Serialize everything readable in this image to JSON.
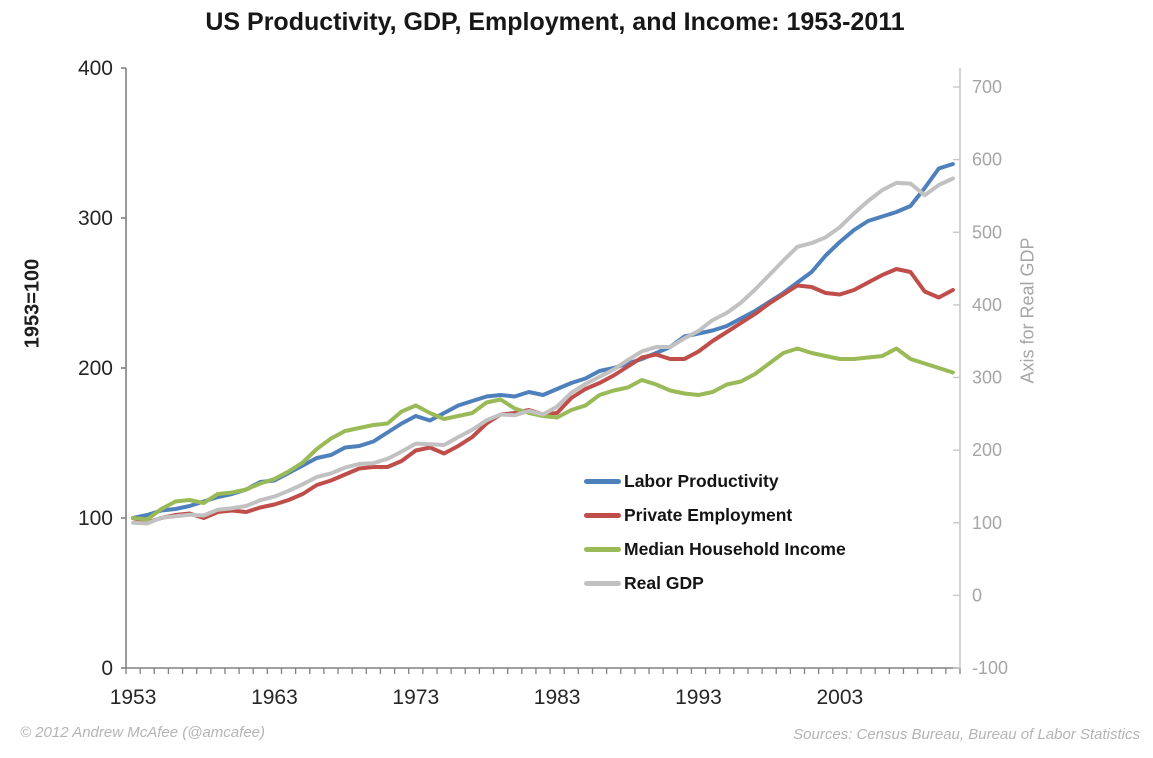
{
  "title": "US Productivity, GDP, Employment, and Income: 1953-2011",
  "left_axis": {
    "title": "1953=100",
    "tick_labels": [
      "0",
      "100",
      "200",
      "300",
      "400"
    ],
    "ticks": [
      0,
      100,
      200,
      300,
      400
    ],
    "range": [
      0,
      400
    ],
    "color": "#262626"
  },
  "right_axis": {
    "title": "Axis for Real GDP",
    "tick_labels": [
      "-100",
      "0",
      "100",
      "200",
      "300",
      "400",
      "500",
      "600",
      "700"
    ],
    "ticks": [
      -100,
      0,
      100,
      200,
      300,
      400,
      500,
      600,
      700
    ],
    "range": [
      -100,
      700
    ],
    "color": "#a6a6a6"
  },
  "x_axis": {
    "tick_labels": [
      "1953",
      "1963",
      "1973",
      "1983",
      "1993",
      "2003"
    ],
    "label_years": [
      1953,
      1963,
      1973,
      1983,
      1993,
      2003
    ],
    "range": [
      1953,
      2011
    ],
    "color": "#262626"
  },
  "legend": {
    "entries": [
      "Labor Productivity",
      "Private Employment",
      "Median Household Income",
      "Real GDP"
    ]
  },
  "footer": {
    "left": "© 2012 Andrew McAfee  (@amcafee)",
    "right": "Sources: Census Bureau, Bureau of Labor Statistics"
  },
  "colors": {
    "labor_productivity": "#4e80bc",
    "private_employment": "#bf4e4b",
    "median_household_income": "#9aba58",
    "real_gdp": "#c2c1c1",
    "axis_line": "#808080",
    "right_axis_line": "#c9c8c8",
    "right_axis_text": "#a6a6a6",
    "footer_text": "#b5b4b4"
  },
  "chart_data": {
    "type": "line",
    "title": "US Productivity, GDP, Employment, and Income: 1953-2011",
    "xlabel": "",
    "ylabel_left": "1953=100",
    "ylabel_right": "Axis for Real GDP",
    "ylim_left": [
      0,
      400
    ],
    "ylim_right": [
      -100,
      700
    ],
    "grid": false,
    "legend_position": "inside-right-middle",
    "x": [
      1953,
      1954,
      1955,
      1956,
      1957,
      1958,
      1959,
      1960,
      1961,
      1962,
      1963,
      1964,
      1965,
      1966,
      1967,
      1968,
      1969,
      1970,
      1971,
      1972,
      1973,
      1974,
      1975,
      1976,
      1977,
      1978,
      1979,
      1980,
      1981,
      1982,
      1983,
      1984,
      1985,
      1986,
      1987,
      1988,
      1989,
      1990,
      1991,
      1992,
      1993,
      1994,
      1995,
      1996,
      1997,
      1998,
      1999,
      2000,
      2001,
      2002,
      2003,
      2004,
      2005,
      2006,
      2007,
      2008,
      2009,
      2010,
      2011
    ],
    "series": [
      {
        "name": "Labor Productivity",
        "axis": "left",
        "color": "#4e80bc",
        "values": [
          100,
          102,
          105,
          106,
          108,
          111,
          114,
          116,
          119,
          124,
          125,
          130,
          135,
          140,
          142,
          147,
          148,
          151,
          157,
          163,
          168,
          165,
          170,
          175,
          178,
          181,
          182,
          181,
          184,
          182,
          186,
          190,
          193,
          198,
          200,
          203,
          206,
          210,
          214,
          221,
          223,
          225,
          228,
          233,
          238,
          244,
          250,
          257,
          264,
          275,
          284,
          292,
          298,
          301,
          304,
          308,
          320,
          333,
          336
        ]
      },
      {
        "name": "Private Employment",
        "axis": "left",
        "color": "#bf4e4b",
        "values": [
          100,
          97,
          100,
          102,
          103,
          100,
          104,
          105,
          104,
          107,
          109,
          112,
          116,
          122,
          125,
          129,
          133,
          134,
          134,
          138,
          145,
          147,
          143,
          148,
          154,
          163,
          169,
          170,
          172,
          169,
          170,
          180,
          186,
          190,
          195,
          201,
          207,
          209,
          206,
          206,
          211,
          218,
          224,
          230,
          236,
          243,
          249,
          255,
          254,
          250,
          249,
          252,
          257,
          262,
          266,
          264,
          251,
          247,
          252
        ]
      },
      {
        "name": "Median Household Income",
        "axis": "left",
        "color": "#9aba58",
        "values": [
          100,
          99,
          106,
          111,
          112,
          110,
          116,
          117,
          119,
          123,
          126,
          131,
          137,
          146,
          153,
          158,
          160,
          162,
          163,
          171,
          175,
          170,
          166,
          168,
          170,
          177,
          179,
          173,
          170,
          168,
          167,
          172,
          175,
          182,
          185,
          187,
          192,
          189,
          185,
          183,
          182,
          184,
          189,
          191,
          196,
          203,
          210,
          213,
          210,
          208,
          206,
          206,
          207,
          208,
          213,
          206,
          203,
          200,
          197
        ]
      },
      {
        "name": "Real GDP",
        "axis": "right",
        "color": "#c2c1c1",
        "values": [
          100,
          99,
          107,
          109,
          111,
          110,
          118,
          120,
          123,
          131,
          136,
          144,
          153,
          163,
          168,
          176,
          181,
          182,
          188,
          198,
          209,
          208,
          207,
          218,
          228,
          241,
          249,
          248,
          254,
          249,
          260,
          279,
          291,
          301,
          311,
          324,
          336,
          342,
          342,
          354,
          364,
          379,
          389,
          403,
          421,
          441,
          461,
          480,
          485,
          493,
          507,
          526,
          543,
          558,
          568,
          567,
          551,
          565,
          574
        ]
      }
    ]
  }
}
